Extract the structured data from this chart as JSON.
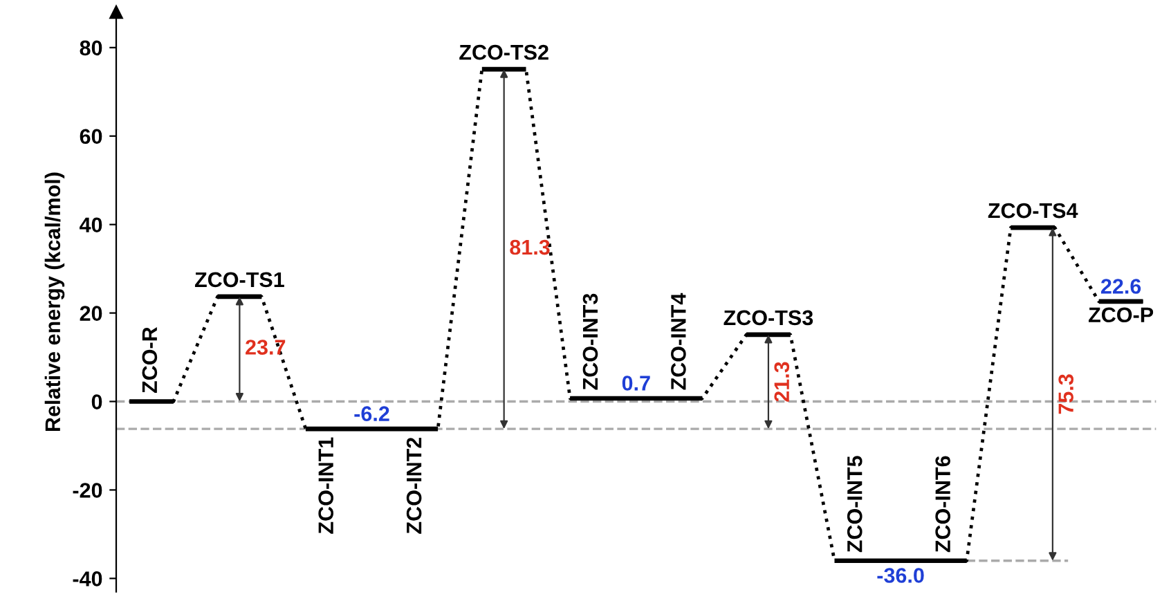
{
  "chart_data": {
    "type": "line",
    "ylabel": "Relative energy (kcal/mol)",
    "categories": [
      null,
      null,
      null,
      null,
      null,
      null,
      null,
      null,
      null,
      null,
      null,
      null,
      null,
      null,
      null,
      null,
      null,
      null,
      null,
      null,
      null,
      null,
      null,
      null
    ],
    "ylim": [
      -43,
      88
    ],
    "yticks": [
      -40,
      -20,
      0,
      20,
      40,
      60,
      80
    ],
    "grid": false,
    "tick_labels": "y",
    "marker": "none",
    "line_style": "dotted",
    "series": [
      {
        "color": "#000000",
        "values": [
          0,
          0,
          23.7,
          23.7,
          -6.2,
          -6.2,
          -6.2,
          -6.2,
          75.1,
          75.1,
          0.7,
          0.7,
          0.7,
          0.7,
          15.1,
          15.1,
          -36.0,
          -36.0,
          -36.0,
          -36.0,
          39.3,
          39.3,
          22.6,
          22.6
        ],
        "value_labels": [
          null,
          null,
          null,
          null,
          null,
          "-6.2",
          null,
          null,
          null,
          null,
          null,
          "0.7",
          null,
          null,
          null,
          null,
          null,
          "-36.0",
          null,
          null,
          null,
          null,
          "22.6",
          null
        ]
      }
    ],
    "ref_lines": [
      {
        "axis": "y",
        "value": 0,
        "color": "#aaaaaa",
        "line_style": "dashed"
      },
      {
        "axis": "y",
        "value": -6.2,
        "color": "#aaaaaa",
        "line_style": "dashed"
      },
      {
        "axis": "y",
        "value": -36.0,
        "color": "#aaaaaa",
        "line_style": "dashed"
      }
    ],
    "annotations": [
      "ZCO-R",
      "ZCO-TS1",
      "ZCO-INT1",
      "ZCO-INT2",
      "ZCO-TS2",
      "ZCO-INT3",
      "ZCO-INT4",
      "ZCO-TS3",
      "ZCO-INT5",
      "ZCO-INT6",
      "ZCO-TS4",
      "ZCO-P",
      "23.7",
      "81.3",
      "21.3",
      "75.3"
    ]
  }
}
